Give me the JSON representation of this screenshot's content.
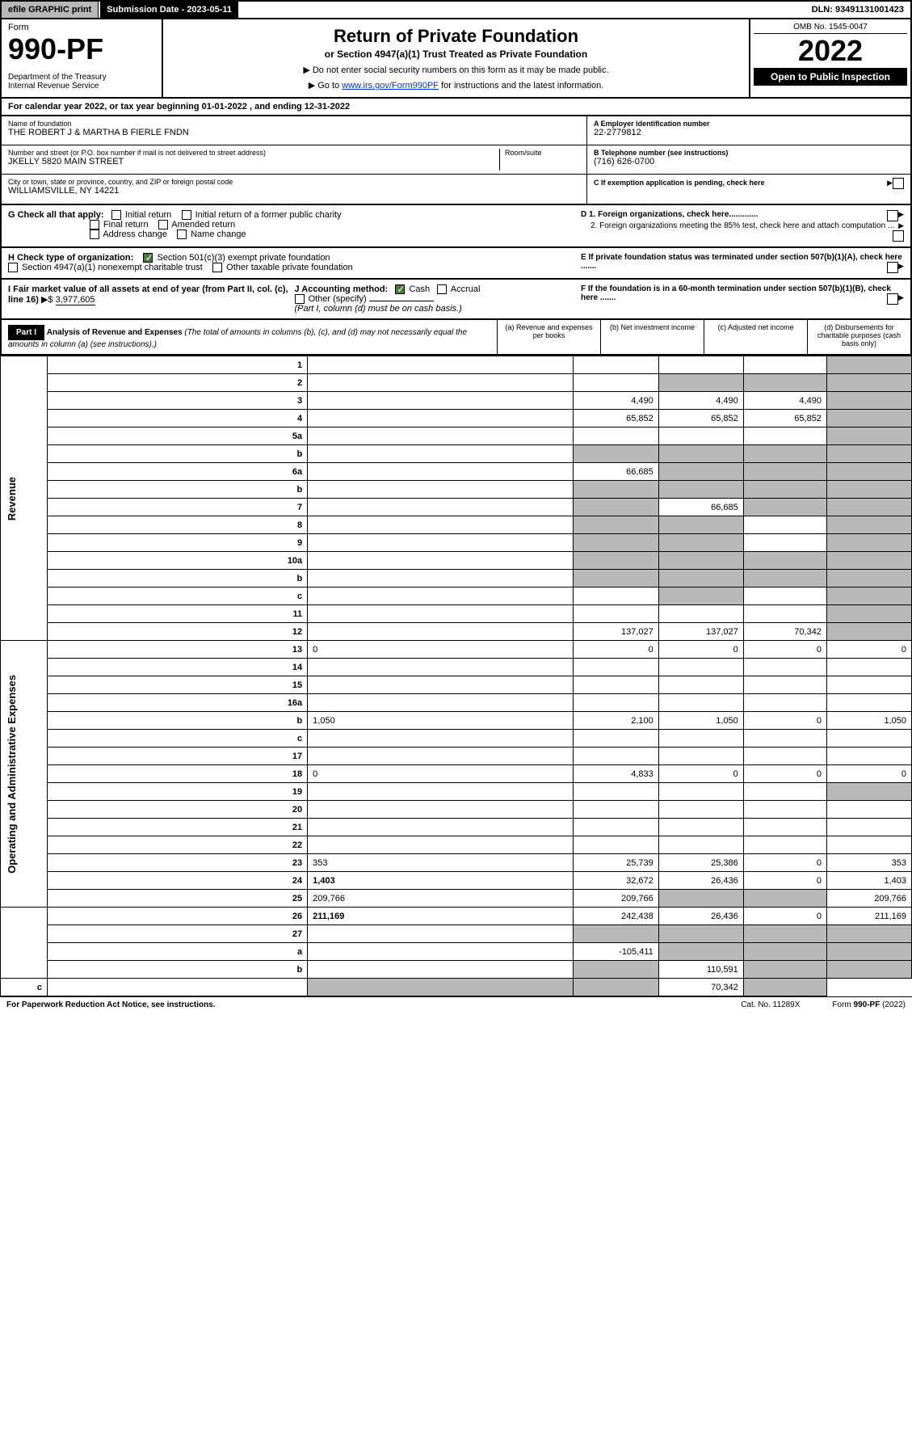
{
  "topbar": {
    "efile": "efile GRAPHIC print",
    "subdate_label": "Submission Date - 2023-05-11",
    "dln": "DLN: 93491131001423"
  },
  "header": {
    "form_label": "Form",
    "form_num": "990-PF",
    "dept": "Department of the Treasury\nInternal Revenue Service",
    "title": "Return of Private Foundation",
    "subtitle": "or Section 4947(a)(1) Trust Treated as Private Foundation",
    "instr1": "▶ Do not enter social security numbers on this form as it may be made public.",
    "instr2_pre": "▶ Go to ",
    "instr2_link": "www.irs.gov/Form990PF",
    "instr2_post": " for instructions and the latest information.",
    "omb": "OMB No. 1545-0047",
    "year": "2022",
    "open_pub": "Open to Public Inspection"
  },
  "cal_year": "For calendar year 2022, or tax year beginning 01-01-2022        , and ending 12-31-2022",
  "info": {
    "name_lbl": "Name of foundation",
    "name": "THE ROBERT J & MARTHA B FIERLE FNDN",
    "addr_lbl": "Number and street (or P.O. box number if mail is not delivered to street address)",
    "addr": "JKELLY 5820 MAIN STREET",
    "room_lbl": "Room/suite",
    "city_lbl": "City or town, state or province, country, and ZIP or foreign postal code",
    "city": "WILLIAMSVILLE, NY  14221",
    "a_lbl": "A Employer identification number",
    "a_val": "22-2779812",
    "b_lbl": "B Telephone number (see instructions)",
    "b_val": "(716) 626-0700",
    "c_lbl": "C If exemption application is pending, check here"
  },
  "g": {
    "label": "G Check all that apply:",
    "opts": [
      "Initial return",
      "Initial return of a former public charity",
      "Final return",
      "Amended return",
      "Address change",
      "Name change"
    ],
    "d1": "D 1. Foreign organizations, check here.............",
    "d2": "2. Foreign organizations meeting the 85% test, check here and attach computation ..."
  },
  "h": {
    "label": "H Check type of organization:",
    "opt1": "Section 501(c)(3) exempt private foundation",
    "opt2": "Section 4947(a)(1) nonexempt charitable trust",
    "opt3": "Other taxable private foundation",
    "e": "E  If private foundation status was terminated under section 507(b)(1)(A), check here ......."
  },
  "ij": {
    "i_lbl": "I Fair market value of all assets at end of year (from Part II, col. (c), line 16)",
    "i_val": "3,977,605",
    "j_lbl": "J Accounting method:",
    "j_cash": "Cash",
    "j_accrual": "Accrual",
    "j_other": "Other (specify)",
    "j_note": "(Part I, column (d) must be on cash basis.)",
    "f": "F  If the foundation is in a 60-month termination under section 507(b)(1)(B), check here ......."
  },
  "part1": {
    "label": "Part I",
    "title": "Analysis of Revenue and Expenses",
    "title_note": " (The total of amounts in columns (b), (c), and (d) may not necessarily equal the amounts in column (a) (see instructions).)",
    "col_a": "(a)   Revenue and expenses per books",
    "col_b": "(b)   Net investment income",
    "col_c": "(c)   Adjusted net income",
    "col_d": "(d)   Disbursements for charitable purposes (cash basis only)"
  },
  "side_labels": {
    "rev": "Revenue",
    "exp": "Operating and Administrative Expenses"
  },
  "rows": [
    {
      "n": "1",
      "d": "",
      "a": "",
      "b": "",
      "c": "",
      "dg": true
    },
    {
      "n": "2",
      "d": "",
      "a": "",
      "b": "",
      "c": "",
      "bg": true,
      "cg": true,
      "dg": true
    },
    {
      "n": "3",
      "d": "",
      "a": "4,490",
      "b": "4,490",
      "c": "4,490",
      "dg": true
    },
    {
      "n": "4",
      "d": "",
      "a": "65,852",
      "b": "65,852",
      "c": "65,852",
      "dg": true
    },
    {
      "n": "5a",
      "d": "",
      "a": "",
      "b": "",
      "c": "",
      "dg": true
    },
    {
      "n": "b",
      "d": "",
      "a": "",
      "b": "",
      "c": "",
      "ag": true,
      "bg": true,
      "cg": true,
      "dg": true
    },
    {
      "n": "6a",
      "d": "",
      "a": "66,685",
      "b": "",
      "c": "",
      "bg": true,
      "cg": true,
      "dg": true
    },
    {
      "n": "b",
      "d": "",
      "a": "",
      "b": "",
      "c": "",
      "ag": true,
      "bg": true,
      "cg": true,
      "dg": true
    },
    {
      "n": "7",
      "d": "",
      "a": "",
      "b": "66,685",
      "c": "",
      "ag": true,
      "cg": true,
      "dg": true
    },
    {
      "n": "8",
      "d": "",
      "a": "",
      "b": "",
      "c": "",
      "ag": true,
      "bg": true,
      "dg": true
    },
    {
      "n": "9",
      "d": "",
      "a": "",
      "b": "",
      "c": "",
      "ag": true,
      "bg": true,
      "dg": true
    },
    {
      "n": "10a",
      "d": "",
      "a": "",
      "b": "",
      "c": "",
      "ag": true,
      "bg": true,
      "cg": true,
      "dg": true
    },
    {
      "n": "b",
      "d": "",
      "a": "",
      "b": "",
      "c": "",
      "ag": true,
      "bg": true,
      "cg": true,
      "dg": true
    },
    {
      "n": "c",
      "d": "",
      "a": "",
      "b": "",
      "c": "",
      "bg": true,
      "dg": true
    },
    {
      "n": "11",
      "d": "",
      "a": "",
      "b": "",
      "c": "",
      "dg": true
    },
    {
      "n": "12",
      "d": "",
      "a": "137,027",
      "b": "137,027",
      "c": "70,342",
      "dg": true,
      "bold": true
    },
    {
      "n": "13",
      "d": "0",
      "a": "0",
      "b": "0",
      "c": "0"
    },
    {
      "n": "14",
      "d": "",
      "a": "",
      "b": "",
      "c": ""
    },
    {
      "n": "15",
      "d": "",
      "a": "",
      "b": "",
      "c": ""
    },
    {
      "n": "16a",
      "d": "",
      "a": "",
      "b": "",
      "c": ""
    },
    {
      "n": "b",
      "d": "1,050",
      "a": "2,100",
      "b": "1,050",
      "c": "0"
    },
    {
      "n": "c",
      "d": "",
      "a": "",
      "b": "",
      "c": ""
    },
    {
      "n": "17",
      "d": "",
      "a": "",
      "b": "",
      "c": ""
    },
    {
      "n": "18",
      "d": "0",
      "a": "4,833",
      "b": "0",
      "c": "0"
    },
    {
      "n": "19",
      "d": "",
      "a": "",
      "b": "",
      "c": "",
      "dg": true
    },
    {
      "n": "20",
      "d": "",
      "a": "",
      "b": "",
      "c": ""
    },
    {
      "n": "21",
      "d": "",
      "a": "",
      "b": "",
      "c": ""
    },
    {
      "n": "22",
      "d": "",
      "a": "",
      "b": "",
      "c": ""
    },
    {
      "n": "23",
      "d": "353",
      "a": "25,739",
      "b": "25,386",
      "c": "0"
    },
    {
      "n": "24",
      "d": "1,403",
      "a": "32,672",
      "b": "26,436",
      "c": "0",
      "bold": true
    },
    {
      "n": "25",
      "d": "209,766",
      "a": "209,766",
      "b": "",
      "c": "",
      "bg": true,
      "cg": true
    },
    {
      "n": "26",
      "d": "211,169",
      "a": "242,438",
      "b": "26,436",
      "c": "0",
      "bold": true
    },
    {
      "n": "27",
      "d": "",
      "a": "",
      "b": "",
      "c": "",
      "ag": true,
      "bg": true,
      "cg": true,
      "dg": true
    },
    {
      "n": "a",
      "d": "",
      "a": "-105,411",
      "b": "",
      "c": "",
      "bg": true,
      "cg": true,
      "dg": true,
      "bold": true
    },
    {
      "n": "b",
      "d": "",
      "a": "",
      "b": "110,591",
      "c": "",
      "ag": true,
      "cg": true,
      "dg": true,
      "bold": true
    },
    {
      "n": "c",
      "d": "",
      "a": "",
      "b": "",
      "c": "70,342",
      "ag": true,
      "bg": true,
      "dg": true,
      "bold": true
    }
  ],
  "footer": {
    "left": "For Paperwork Reduction Act Notice, see instructions.",
    "mid": "Cat. No. 11289X",
    "right": "Form 990-PF (2022)"
  }
}
